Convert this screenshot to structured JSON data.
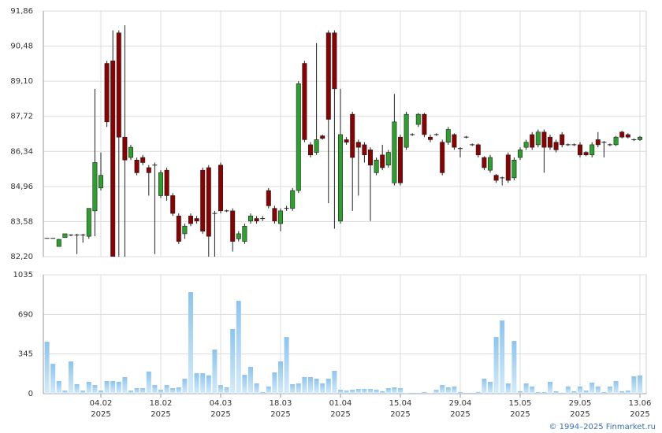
{
  "chart_data": {
    "type": "candlestick",
    "x": [
      "2025-01-22",
      "2025-01-23",
      "2025-01-24",
      "2025-01-27",
      "2025-01-28",
      "2025-01-29",
      "2025-01-30",
      "2025-01-31",
      "2025-02-03",
      "2025-02-04",
      "2025-02-05",
      "2025-02-06",
      "2025-02-07",
      "2025-02-10",
      "2025-02-11",
      "2025-02-12",
      "2025-02-13",
      "2025-02-14",
      "2025-02-17",
      "2025-02-18",
      "2025-02-19",
      "2025-02-20",
      "2025-02-21",
      "2025-02-24",
      "2025-02-25",
      "2025-02-26",
      "2025-02-27",
      "2025-02-28",
      "2025-03-03",
      "2025-03-04",
      "2025-03-05",
      "2025-03-06",
      "2025-03-07",
      "2025-03-10",
      "2025-03-11",
      "2025-03-12",
      "2025-03-13",
      "2025-03-14",
      "2025-03-17",
      "2025-03-18",
      "2025-03-19",
      "2025-03-20",
      "2025-03-21",
      "2025-03-24",
      "2025-03-25",
      "2025-03-26",
      "2025-03-27",
      "2025-03-28",
      "2025-03-31",
      "2025-04-01",
      "2025-04-02",
      "2025-04-03",
      "2025-04-04",
      "2025-04-07",
      "2025-04-08",
      "2025-04-09",
      "2025-04-10",
      "2025-04-11",
      "2025-04-14",
      "2025-04-15",
      "2025-04-16",
      "2025-04-17",
      "2025-04-18",
      "2025-04-21",
      "2025-04-22",
      "2025-04-23",
      "2025-04-24",
      "2025-04-25",
      "2025-04-28",
      "2025-04-29",
      "2025-04-30",
      "2025-05-02",
      "2025-05-05",
      "2025-05-06",
      "2025-05-07",
      "2025-05-08",
      "2025-05-12",
      "2025-05-13",
      "2025-05-14",
      "2025-05-15",
      "2025-05-16",
      "2025-05-19",
      "2025-05-20",
      "2025-05-21",
      "2025-05-22",
      "2025-05-23",
      "2025-05-26",
      "2025-05-27",
      "2025-05-28",
      "2025-05-29",
      "2025-05-30",
      "2025-06-02",
      "2025-06-03",
      "2025-06-04",
      "2025-06-05",
      "2025-06-06",
      "2025-06-09",
      "2025-06-10",
      "2025-06-11",
      "2025-06-13"
    ],
    "open": [
      82.92,
      82.92,
      82.6,
      82.95,
      83.05,
      83.05,
      83.05,
      83.0,
      84.0,
      84.9,
      89.8,
      89.9,
      91.0,
      86.9,
      86.1,
      86.0,
      86.1,
      85.7,
      85.8,
      84.6,
      85.6,
      84.6,
      83.8,
      83.1,
      83.8,
      83.7,
      85.6,
      85.7,
      83.9,
      85.8,
      84.0,
      84.0,
      82.9,
      82.8,
      83.6,
      83.7,
      83.7,
      84.8,
      84.1,
      83.5,
      84.1,
      84.1,
      84.8,
      89.8,
      86.6,
      86.3,
      86.95,
      91.0,
      91.0,
      83.6,
      86.8,
      87.8,
      86.7,
      86.6,
      86.4,
      85.5,
      86.2,
      85.8,
      85.1,
      86.9,
      86.5,
      87.0,
      87.4,
      87.8,
      86.9,
      87.0,
      86.7,
      86.7,
      87.0,
      86.45,
      86.9,
      86.6,
      86.6,
      86.1,
      85.6,
      85.4,
      85.3,
      86.2,
      85.3,
      86.1,
      86.5,
      87.0,
      86.6,
      87.1,
      86.9,
      86.7,
      87.0,
      86.6,
      86.6,
      86.6,
      86.3,
      86.2,
      86.8,
      86.7,
      86.6,
      86.6,
      87.1,
      87.0,
      86.8,
      86.8
    ],
    "high": [
      82.92,
      82.92,
      82.9,
      83.1,
      83.08,
      83.1,
      83.1,
      84.1,
      88.8,
      86.3,
      89.9,
      91.1,
      91.1,
      91.3,
      86.6,
      86.1,
      86.2,
      85.8,
      85.9,
      85.6,
      85.7,
      84.7,
      83.9,
      83.5,
      83.9,
      83.8,
      85.7,
      85.8,
      84.0,
      85.9,
      84.05,
      84.1,
      83.2,
      83.5,
      83.9,
      83.8,
      83.8,
      84.9,
      84.2,
      84.1,
      84.2,
      84.9,
      89.1,
      89.9,
      86.7,
      90.6,
      87.0,
      91.1,
      91.1,
      88.8,
      86.9,
      87.9,
      86.8,
      86.7,
      86.5,
      86.1,
      86.6,
      86.4,
      88.6,
      87.0,
      87.9,
      87.05,
      87.85,
      87.85,
      87.0,
      87.05,
      86.8,
      87.3,
      87.05,
      86.5,
      86.95,
      86.65,
      86.65,
      86.15,
      86.2,
      85.45,
      85.35,
      86.3,
      86.1,
      86.5,
      86.8,
      87.1,
      87.2,
      87.2,
      87.0,
      86.8,
      87.1,
      86.65,
      86.65,
      86.7,
      86.35,
      86.7,
      87.1,
      86.75,
      86.65,
      86.95,
      87.15,
      87.05,
      86.85,
      86.95
    ],
    "low": [
      82.92,
      82.92,
      82.6,
      82.95,
      83.0,
      82.3,
      82.75,
      82.9,
      83.0,
      84.8,
      87.3,
      82.2,
      82.2,
      82.2,
      86.0,
      85.4,
      85.8,
      84.6,
      82.3,
      84.5,
      84.4,
      83.8,
      82.7,
      82.9,
      83.4,
      83.5,
      83.1,
      82.2,
      82.2,
      83.9,
      83.95,
      82.4,
      82.8,
      82.7,
      83.5,
      83.5,
      83.6,
      84.1,
      83.5,
      83.2,
      84.0,
      84.0,
      84.7,
      86.7,
      86.1,
      86.2,
      86.8,
      84.3,
      83.3,
      83.5,
      86.6,
      84.0,
      84.6,
      85.9,
      83.6,
      85.4,
      85.6,
      85.7,
      85.0,
      85.0,
      86.4,
      86.95,
      87.3,
      86.9,
      86.7,
      86.95,
      85.4,
      86.6,
      86.4,
      86.1,
      86.85,
      86.55,
      86.1,
      85.6,
      85.5,
      85.1,
      85.0,
      85.1,
      85.2,
      86.0,
      86.4,
      86.4,
      86.5,
      85.5,
      86.4,
      86.3,
      86.5,
      86.55,
      86.55,
      86.1,
      86.15,
      86.1,
      86.5,
      86.1,
      86.55,
      86.55,
      86.85,
      86.85,
      86.75,
      86.75
    ],
    "close": [
      82.92,
      82.92,
      82.88,
      83.1,
      83.05,
      83.05,
      83.05,
      84.1,
      85.9,
      85.4,
      87.5,
      82.2,
      86.9,
      86.0,
      86.5,
      85.5,
      85.9,
      85.5,
      85.8,
      85.5,
      84.6,
      83.9,
      82.8,
      83.4,
      83.5,
      83.6,
      83.2,
      83.0,
      83.9,
      84.0,
      84.0,
      82.8,
      83.1,
      83.4,
      83.8,
      83.6,
      83.7,
      84.2,
      83.6,
      84.0,
      84.1,
      84.8,
      89.0,
      86.8,
      86.2,
      86.8,
      86.85,
      87.6,
      88.8,
      87.0,
      86.7,
      86.1,
      86.5,
      86.2,
      85.8,
      86.0,
      85.7,
      86.3,
      87.5,
      85.1,
      87.8,
      87.0,
      87.8,
      87.0,
      86.8,
      87.0,
      85.5,
      87.2,
      86.5,
      86.45,
      86.9,
      86.6,
      86.2,
      85.7,
      86.1,
      85.2,
      85.3,
      85.2,
      86.0,
      86.4,
      86.7,
      86.5,
      87.1,
      86.5,
      86.5,
      86.4,
      86.6,
      86.6,
      86.6,
      86.2,
      86.2,
      86.6,
      86.6,
      86.7,
      86.6,
      86.9,
      86.9,
      86.9,
      86.8,
      86.9
    ],
    "up_color": "#2ca02c",
    "down_color": "#8b0000",
    "ylim": [
      82.2,
      91.86
    ],
    "yticks": [
      {
        "value": 82.2,
        "label": "82,20"
      },
      {
        "value": 83.58,
        "label": "83,58"
      },
      {
        "value": 84.96,
        "label": "84,96"
      },
      {
        "value": 86.34,
        "label": "86,34"
      },
      {
        "value": 87.72,
        "label": "87,72"
      },
      {
        "value": 89.1,
        "label": "89,10"
      },
      {
        "value": 90.48,
        "label": "90,48"
      },
      {
        "value": 91.86,
        "label": "91,86"
      }
    ],
    "volume": {
      "values": [
        452,
        260,
        110,
        27,
        280,
        82,
        27,
        103,
        75,
        27,
        110,
        110,
        103,
        144,
        27,
        48,
        48,
        192,
        75,
        34,
        75,
        48,
        55,
        130,
        884,
        178,
        178,
        158,
        384,
        75,
        55,
        562,
        808,
        164,
        233,
        89,
        14,
        62,
        185,
        281,
        493,
        82,
        89,
        144,
        144,
        130,
        89,
        130,
        199,
        34,
        27,
        34,
        41,
        41,
        41,
        34,
        21,
        48,
        55,
        48,
        3,
        7,
        7,
        14,
        3,
        34,
        75,
        55,
        62,
        14,
        7,
        7,
        14,
        130,
        103,
        493,
        637,
        89,
        459,
        21,
        89,
        62,
        14,
        14,
        103,
        21,
        7,
        62,
        21,
        62,
        27,
        96,
        62,
        14,
        62,
        110,
        21,
        27,
        151,
        158
      ],
      "color": "#8cc4ee",
      "ylim": [
        0,
        1035
      ],
      "yticks": [
        0,
        345,
        690,
        1035
      ]
    },
    "xticks": [
      {
        "value": "2025-02-04",
        "label": [
          "04.02",
          "2025"
        ]
      },
      {
        "value": "2025-02-18",
        "label": [
          "18.02",
          "2025"
        ]
      },
      {
        "value": "2025-03-04",
        "label": [
          "04.03",
          "2025"
        ]
      },
      {
        "value": "2025-03-18",
        "label": [
          "18.03",
          "2025"
        ]
      },
      {
        "value": "2025-04-01",
        "label": [
          "01.04",
          "2025"
        ]
      },
      {
        "value": "2025-04-15",
        "label": [
          "15.04",
          "2025"
        ]
      },
      {
        "value": "2025-04-29",
        "label": [
          "29.04",
          "2025"
        ]
      },
      {
        "value": "2025-05-15",
        "label": [
          "15.05",
          "2025"
        ]
      },
      {
        "value": "2025-05-29",
        "label": [
          "29.05",
          "2025"
        ]
      },
      {
        "value": "2025-06-13",
        "label": [
          "13.06",
          "2025"
        ]
      }
    ],
    "grid": true,
    "copyright": "© 1994–2025 Finmarket.ru"
  }
}
